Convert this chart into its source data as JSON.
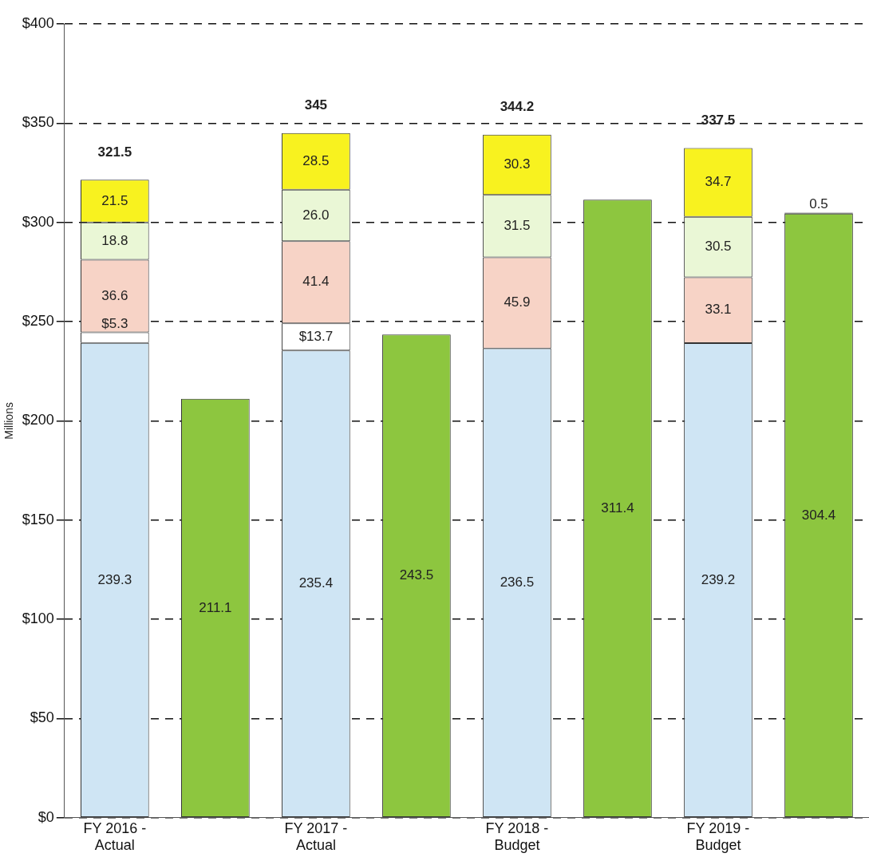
{
  "chart_data": {
    "type": "bar",
    "stacked": true,
    "ylabel": "Millions",
    "categories": [
      "FY 2016 -\nActual",
      null,
      "FY 2017 -\nActual",
      null,
      "FY 2018 -\nBudget",
      null,
      "FY 2019 -\nBudget",
      null
    ],
    "series": [
      {
        "color": "#cfe5f4",
        "values": [
          239.3,
          null,
          235.4,
          null,
          236.5,
          null,
          239.2,
          null
        ],
        "value_labels": [
          "239.3",
          null,
          "235.4",
          null,
          "236.5",
          null,
          "239.2",
          null
        ]
      },
      {
        "color": "#ffffff",
        "values": [
          5.3,
          null,
          13.7,
          null,
          null,
          null,
          null,
          null
        ],
        "value_labels": [
          "$5.3",
          null,
          "$13.7",
          null,
          null,
          null,
          null,
          null
        ]
      },
      {
        "color": "#f7d3c6",
        "values": [
          36.6,
          null,
          41.4,
          null,
          45.9,
          null,
          33.1,
          null
        ],
        "value_labels": [
          "36.6",
          null,
          "41.4",
          null,
          "45.9",
          null,
          "33.1",
          null
        ]
      },
      {
        "color": "#eaf7d6",
        "values": [
          18.8,
          null,
          26.0,
          null,
          31.5,
          null,
          30.5,
          null
        ],
        "value_labels": [
          "18.8",
          null,
          "26.0",
          null,
          "31.5",
          null,
          "30.5",
          null
        ]
      },
      {
        "color": "#f8f21f",
        "values": [
          21.5,
          null,
          28.5,
          null,
          30.3,
          null,
          34.7,
          null
        ],
        "value_labels": [
          "21.5",
          null,
          "28.5",
          null,
          "30.3",
          null,
          "34.7",
          null
        ]
      },
      {
        "color": "#8dc63f",
        "values": [
          null,
          211.1,
          null,
          243.5,
          null,
          311.4,
          null,
          304.4
        ],
        "value_labels": [
          null,
          "211.1",
          null,
          "243.5",
          null,
          "311.4",
          null,
          "304.4"
        ]
      },
      {
        "color": "#333333",
        "values": [
          null,
          null,
          null,
          null,
          null,
          null,
          null,
          0.5
        ],
        "value_labels": [
          null,
          null,
          null,
          null,
          null,
          null,
          null,
          "0.5"
        ]
      }
    ],
    "totals": [
      "321.5",
      null,
      "345",
      null,
      "344.2",
      null,
      "337.5",
      null
    ],
    "ylim": [
      0,
      400
    ],
    "yticks": [
      {
        "value": 0,
        "label": "$0"
      },
      {
        "value": 50,
        "label": "$50"
      },
      {
        "value": 100,
        "label": "$100"
      },
      {
        "value": 150,
        "label": "$150"
      },
      {
        "value": 200,
        "label": "$200"
      },
      {
        "value": 250,
        "label": "$250"
      },
      {
        "value": 300,
        "label": "$300"
      },
      {
        "value": 350,
        "label": "$350"
      },
      {
        "value": 400,
        "label": "$400"
      }
    ],
    "grid": "y",
    "legend": false
  }
}
